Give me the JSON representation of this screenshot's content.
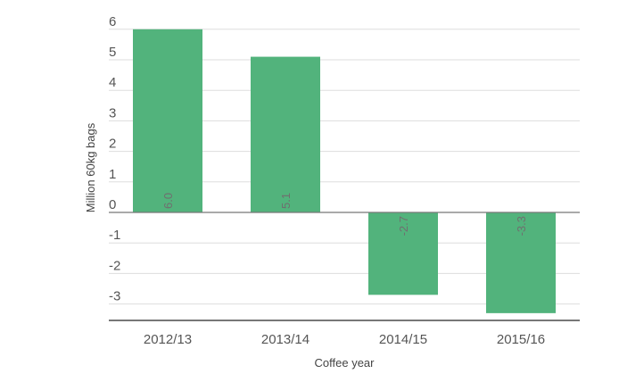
{
  "chart_data": {
    "type": "bar",
    "categories": [
      "2012/13",
      "2013/14",
      "2014/15",
      "2015/16"
    ],
    "values": [
      6.0,
      5.1,
      -2.7,
      -3.3
    ],
    "data_labels": [
      "6.0",
      "5.1",
      "-2.7",
      "-3.3"
    ],
    "title": "",
    "xlabel": "Coffee year",
    "ylabel": "Million 60kg bags",
    "ylim": [
      -3.5,
      6
    ],
    "yticks": [
      6,
      5,
      4,
      3,
      2,
      1,
      0,
      -1,
      -2,
      -3
    ],
    "ytick_labels": [
      "6",
      "5",
      "4",
      "3",
      "2",
      "1",
      "0",
      "-1",
      "-2",
      "-3"
    ],
    "grid": true,
    "legend": "none",
    "colors": {
      "bar": "#52b37c",
      "grid": "#dddddd",
      "axis": "#777777"
    }
  }
}
